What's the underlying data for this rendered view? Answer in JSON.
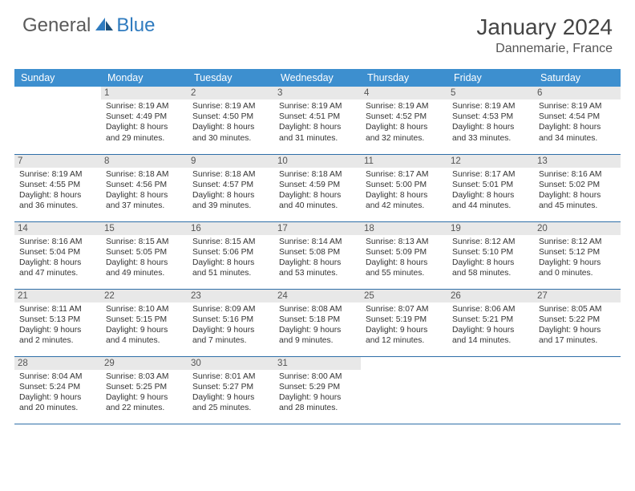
{
  "logo": {
    "part1": "General",
    "part2": "Blue"
  },
  "title": {
    "month_year": "January 2024",
    "location": "Dannemarie, France"
  },
  "colors": {
    "header_bg": "#3d8fcf",
    "header_text": "#ffffff",
    "daynum_bg": "#e8e8e8",
    "border": "#2f6fa8",
    "logo_gray": "#5a5a5a",
    "logo_blue": "#2f7bbf"
  },
  "day_headers": [
    "Sunday",
    "Monday",
    "Tuesday",
    "Wednesday",
    "Thursday",
    "Friday",
    "Saturday"
  ],
  "weeks": [
    [
      null,
      {
        "n": "1",
        "sr": "Sunrise: 8:19 AM",
        "ss": "Sunset: 4:49 PM",
        "dl": "Daylight: 8 hours and 29 minutes."
      },
      {
        "n": "2",
        "sr": "Sunrise: 8:19 AM",
        "ss": "Sunset: 4:50 PM",
        "dl": "Daylight: 8 hours and 30 minutes."
      },
      {
        "n": "3",
        "sr": "Sunrise: 8:19 AM",
        "ss": "Sunset: 4:51 PM",
        "dl": "Daylight: 8 hours and 31 minutes."
      },
      {
        "n": "4",
        "sr": "Sunrise: 8:19 AM",
        "ss": "Sunset: 4:52 PM",
        "dl": "Daylight: 8 hours and 32 minutes."
      },
      {
        "n": "5",
        "sr": "Sunrise: 8:19 AM",
        "ss": "Sunset: 4:53 PM",
        "dl": "Daylight: 8 hours and 33 minutes."
      },
      {
        "n": "6",
        "sr": "Sunrise: 8:19 AM",
        "ss": "Sunset: 4:54 PM",
        "dl": "Daylight: 8 hours and 34 minutes."
      }
    ],
    [
      {
        "n": "7",
        "sr": "Sunrise: 8:19 AM",
        "ss": "Sunset: 4:55 PM",
        "dl": "Daylight: 8 hours and 36 minutes."
      },
      {
        "n": "8",
        "sr": "Sunrise: 8:18 AM",
        "ss": "Sunset: 4:56 PM",
        "dl": "Daylight: 8 hours and 37 minutes."
      },
      {
        "n": "9",
        "sr": "Sunrise: 8:18 AM",
        "ss": "Sunset: 4:57 PM",
        "dl": "Daylight: 8 hours and 39 minutes."
      },
      {
        "n": "10",
        "sr": "Sunrise: 8:18 AM",
        "ss": "Sunset: 4:59 PM",
        "dl": "Daylight: 8 hours and 40 minutes."
      },
      {
        "n": "11",
        "sr": "Sunrise: 8:17 AM",
        "ss": "Sunset: 5:00 PM",
        "dl": "Daylight: 8 hours and 42 minutes."
      },
      {
        "n": "12",
        "sr": "Sunrise: 8:17 AM",
        "ss": "Sunset: 5:01 PM",
        "dl": "Daylight: 8 hours and 44 minutes."
      },
      {
        "n": "13",
        "sr": "Sunrise: 8:16 AM",
        "ss": "Sunset: 5:02 PM",
        "dl": "Daylight: 8 hours and 45 minutes."
      }
    ],
    [
      {
        "n": "14",
        "sr": "Sunrise: 8:16 AM",
        "ss": "Sunset: 5:04 PM",
        "dl": "Daylight: 8 hours and 47 minutes."
      },
      {
        "n": "15",
        "sr": "Sunrise: 8:15 AM",
        "ss": "Sunset: 5:05 PM",
        "dl": "Daylight: 8 hours and 49 minutes."
      },
      {
        "n": "16",
        "sr": "Sunrise: 8:15 AM",
        "ss": "Sunset: 5:06 PM",
        "dl": "Daylight: 8 hours and 51 minutes."
      },
      {
        "n": "17",
        "sr": "Sunrise: 8:14 AM",
        "ss": "Sunset: 5:08 PM",
        "dl": "Daylight: 8 hours and 53 minutes."
      },
      {
        "n": "18",
        "sr": "Sunrise: 8:13 AM",
        "ss": "Sunset: 5:09 PM",
        "dl": "Daylight: 8 hours and 55 minutes."
      },
      {
        "n": "19",
        "sr": "Sunrise: 8:12 AM",
        "ss": "Sunset: 5:10 PM",
        "dl": "Daylight: 8 hours and 58 minutes."
      },
      {
        "n": "20",
        "sr": "Sunrise: 8:12 AM",
        "ss": "Sunset: 5:12 PM",
        "dl": "Daylight: 9 hours and 0 minutes."
      }
    ],
    [
      {
        "n": "21",
        "sr": "Sunrise: 8:11 AM",
        "ss": "Sunset: 5:13 PM",
        "dl": "Daylight: 9 hours and 2 minutes."
      },
      {
        "n": "22",
        "sr": "Sunrise: 8:10 AM",
        "ss": "Sunset: 5:15 PM",
        "dl": "Daylight: 9 hours and 4 minutes."
      },
      {
        "n": "23",
        "sr": "Sunrise: 8:09 AM",
        "ss": "Sunset: 5:16 PM",
        "dl": "Daylight: 9 hours and 7 minutes."
      },
      {
        "n": "24",
        "sr": "Sunrise: 8:08 AM",
        "ss": "Sunset: 5:18 PM",
        "dl": "Daylight: 9 hours and 9 minutes."
      },
      {
        "n": "25",
        "sr": "Sunrise: 8:07 AM",
        "ss": "Sunset: 5:19 PM",
        "dl": "Daylight: 9 hours and 12 minutes."
      },
      {
        "n": "26",
        "sr": "Sunrise: 8:06 AM",
        "ss": "Sunset: 5:21 PM",
        "dl": "Daylight: 9 hours and 14 minutes."
      },
      {
        "n": "27",
        "sr": "Sunrise: 8:05 AM",
        "ss": "Sunset: 5:22 PM",
        "dl": "Daylight: 9 hours and 17 minutes."
      }
    ],
    [
      {
        "n": "28",
        "sr": "Sunrise: 8:04 AM",
        "ss": "Sunset: 5:24 PM",
        "dl": "Daylight: 9 hours and 20 minutes."
      },
      {
        "n": "29",
        "sr": "Sunrise: 8:03 AM",
        "ss": "Sunset: 5:25 PM",
        "dl": "Daylight: 9 hours and 22 minutes."
      },
      {
        "n": "30",
        "sr": "Sunrise: 8:01 AM",
        "ss": "Sunset: 5:27 PM",
        "dl": "Daylight: 9 hours and 25 minutes."
      },
      {
        "n": "31",
        "sr": "Sunrise: 8:00 AM",
        "ss": "Sunset: 5:29 PM",
        "dl": "Daylight: 9 hours and 28 minutes."
      },
      null,
      null,
      null
    ]
  ]
}
